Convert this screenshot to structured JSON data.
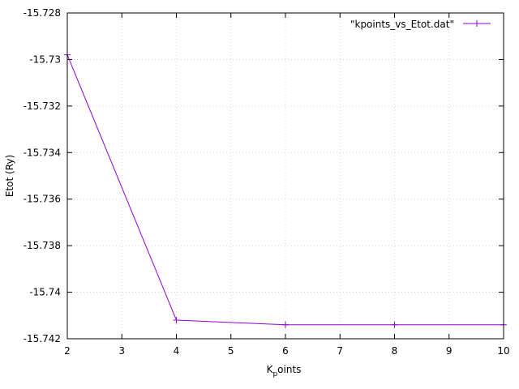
{
  "chart_data": {
    "type": "line",
    "title": "",
    "xlabel_main": "K",
    "xlabel_sub": "p",
    "xlabel_rest": "oints",
    "ylabel": "Etot (Ry)",
    "xlim": [
      2,
      10
    ],
    "ylim": [
      -15.742,
      -15.728
    ],
    "x_ticks": [
      2,
      3,
      4,
      5,
      6,
      7,
      8,
      9,
      10
    ],
    "x_tick_labels": [
      "2",
      "3",
      "4",
      "5",
      "6",
      "7",
      "8",
      "9",
      "10"
    ],
    "y_ticks": [
      -15.728,
      -15.73,
      -15.732,
      -15.734,
      -15.736,
      -15.738,
      -15.74,
      -15.742
    ],
    "y_tick_labels": [
      "-15.728",
      "-15.73",
      "-15.732",
      "-15.734",
      "-15.736",
      "-15.738",
      "-15.74",
      "-15.742"
    ],
    "grid": true,
    "legend_position": "top-right",
    "series": [
      {
        "name": "\"kpoints_vs_Etot.dat\"",
        "color": "#9400d3",
        "marker": "plus",
        "x": [
          2,
          4,
          6,
          8,
          10
        ],
        "y": [
          -15.7298,
          -15.7412,
          -15.7414,
          -15.7414,
          -15.7414
        ]
      }
    ]
  }
}
